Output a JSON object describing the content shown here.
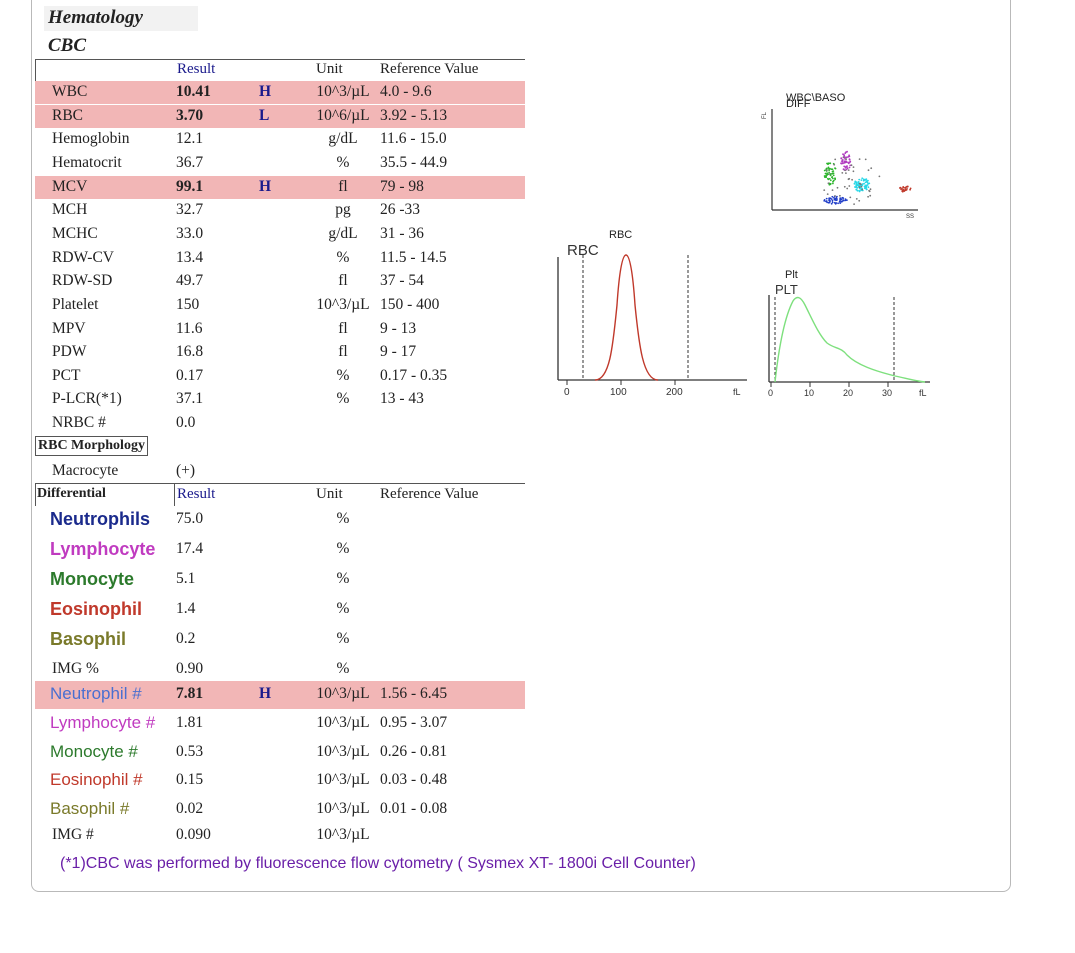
{
  "section": "Hematology",
  "subsection": "CBC",
  "cbc_headers": {
    "result": "Result",
    "unit": "Unit",
    "reference": "Reference Value"
  },
  "cbc_rows": [
    {
      "name": "WBC",
      "result": "10.41",
      "flag": "H",
      "unit": "10^3/µL",
      "ref": "4.0 - 9.6",
      "highlight": true
    },
    {
      "name": "RBC",
      "result": "3.70",
      "flag": "L",
      "unit": "10^6/µL",
      "ref": "3.92 - 5.13",
      "highlight": true
    },
    {
      "name": "Hemoglobin",
      "result": "12.1",
      "flag": "",
      "unit": "g/dL",
      "ref": "11.6 - 15.0",
      "highlight": false
    },
    {
      "name": "Hematocrit",
      "result": "36.7",
      "flag": "",
      "unit": "%",
      "ref": "35.5 - 44.9",
      "highlight": false
    },
    {
      "name": "MCV",
      "result": "99.1",
      "flag": "H",
      "unit": "fl",
      "ref": "79 - 98",
      "highlight": true
    },
    {
      "name": "MCH",
      "result": "32.7",
      "flag": "",
      "unit": "pg",
      "ref": "26 -33",
      "highlight": false
    },
    {
      "name": "MCHC",
      "result": "33.0",
      "flag": "",
      "unit": "g/dL",
      "ref": "31 - 36",
      "highlight": false
    },
    {
      "name": "RDW-CV",
      "result": "13.4",
      "flag": "",
      "unit": "%",
      "ref": "11.5 - 14.5",
      "highlight": false
    },
    {
      "name": "RDW-SD",
      "result": "49.7",
      "flag": "",
      "unit": "fl",
      "ref": "37 - 54",
      "highlight": false
    },
    {
      "name": "Platelet",
      "result": "150",
      "flag": "",
      "unit": "10^3/µL",
      "ref": "150 - 400",
      "highlight": false
    },
    {
      "name": "MPV",
      "result": "11.6",
      "flag": "",
      "unit": "fl",
      "ref": "9 - 13",
      "highlight": false
    },
    {
      "name": "PDW",
      "result": "16.8",
      "flag": "",
      "unit": "fl",
      "ref": "9 - 17",
      "highlight": false
    },
    {
      "name": "PCT",
      "result": "0.17",
      "flag": "",
      "unit": "%",
      "ref": "0.17 - 0.35",
      "highlight": false
    },
    {
      "name": "P-LCR(*1)",
      "result": "37.1",
      "flag": "",
      "unit": "%",
      "ref": "13 - 43",
      "highlight": false
    },
    {
      "name": "NRBC #",
      "result": "0.0",
      "flag": "",
      "unit": "",
      "ref": "",
      "highlight": false
    }
  ],
  "morphology": {
    "label": "RBC Morphology",
    "item": "Macrocyte",
    "value": "(+)"
  },
  "differential_headers": {
    "label": "Differential",
    "result": "Result",
    "unit": "Unit",
    "reference": "Reference Value"
  },
  "differential_pct": [
    {
      "name": "Neutrophils",
      "result": "75.0",
      "unit": "%",
      "color": "#1a2a8c"
    },
    {
      "name": "Lymphocyte",
      "result": "17.4",
      "unit": "%",
      "color": "#c03bc0"
    },
    {
      "name": "Monocyte",
      "result": "5.1",
      "unit": "%",
      "color": "#2c7a2c"
    },
    {
      "name": "Eosinophil",
      "result": "1.4",
      "unit": "%",
      "color": "#c0392b"
    },
    {
      "name": "Basophil",
      "result": "0.2",
      "unit": "%",
      "color": "#7a7a2a"
    }
  ],
  "img_pct": {
    "name": "IMG %",
    "result": "0.90",
    "unit": "%"
  },
  "differential_abs": [
    {
      "name": "Neutrophil #",
      "result": "7.81",
      "flag": "H",
      "unit": "10^3/µL",
      "ref": "1.56 - 6.45",
      "color": "#4a6fd0",
      "highlight": true
    },
    {
      "name": "Lymphocyte #",
      "result": "1.81",
      "flag": "",
      "unit": "10^3/µL",
      "ref": "0.95 - 3.07",
      "color": "#c03bc0",
      "highlight": false
    },
    {
      "name": "Monocyte #",
      "result": "0.53",
      "flag": "",
      "unit": "10^3/µL",
      "ref": "0.26 - 0.81",
      "color": "#2c7a2c",
      "highlight": false
    },
    {
      "name": "Eosinophil #",
      "result": "0.15",
      "flag": "",
      "unit": "10^3/µL",
      "ref": "0.03 - 0.48",
      "color": "#c0392b",
      "highlight": false
    },
    {
      "name": "Basophil #",
      "result": "0.02",
      "flag": "",
      "unit": "10^3/µL",
      "ref": "0.01 - 0.08",
      "color": "#7a7a2a",
      "highlight": false
    }
  ],
  "img_abs": {
    "name": "IMG #",
    "result": "0.090",
    "unit": "10^3/µL"
  },
  "footnote": "(*1)CBC was performed by fluorescence flow cytometry ( Sysmex XT- 1800i Cell Counter)",
  "scatter": {
    "title": "WBC\\BASO",
    "subtitle": "DIFF",
    "ylabel": "FL",
    "xlabel": "SS"
  },
  "rbc_hist": {
    "title": "RBC",
    "label": "RBC",
    "ticks": [
      "0",
      "100",
      "200",
      "fL"
    ]
  },
  "plt_hist": {
    "title": "Plt",
    "label": "PLT",
    "ticks": [
      "0",
      "10",
      "20",
      "30",
      "fL"
    ]
  }
}
